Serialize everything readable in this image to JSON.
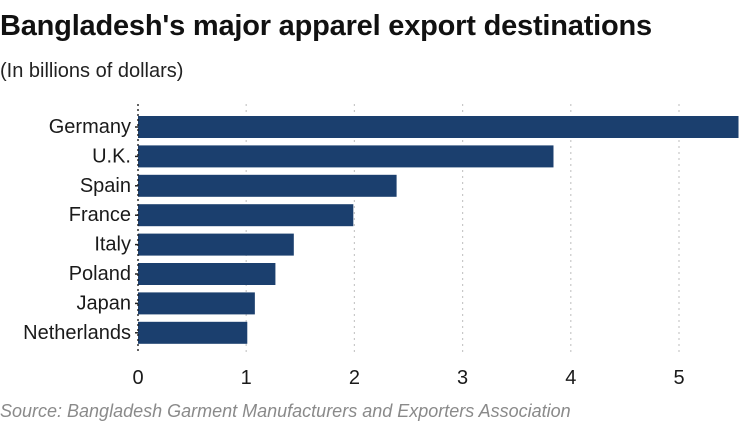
{
  "colors": {
    "bar": "#1b3f6e",
    "grid": "#c8c8c8",
    "axis": "#222222"
  },
  "chart_data": {
    "type": "bar",
    "orientation": "horizontal",
    "title": "Bangladesh's major apparel export destinations",
    "subtitle": "(In billions of dollars)",
    "source": "Source: Bangladesh Garment Manufacturers and Exporters Association",
    "categories": [
      "Germany",
      "U.K.",
      "Spain",
      "France",
      "Italy",
      "Poland",
      "Japan",
      "Netherlands"
    ],
    "values": [
      5.55,
      3.84,
      2.39,
      1.99,
      1.44,
      1.27,
      1.08,
      1.01
    ],
    "xlim": [
      0,
      5.55
    ],
    "xticks": [
      0,
      1,
      2,
      3,
      4,
      5
    ],
    "grid": "vertical-dotted",
    "legend": "none"
  }
}
